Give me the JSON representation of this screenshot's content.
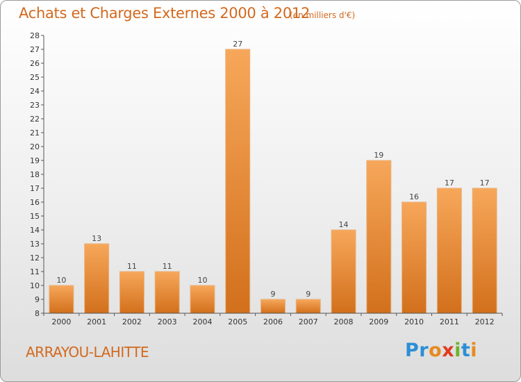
{
  "header": {
    "title": "Achats et Charges Externes 2000 à 2012",
    "subtitle": "(en milliers d'€)"
  },
  "footer": {
    "place": "ARRAYOU-LAHITTE",
    "logo_letters": [
      {
        "ch": "P",
        "color": "#2b8fd6"
      },
      {
        "ch": "r",
        "color": "#2b8fd6"
      },
      {
        "ch": "o",
        "color": "#e8891e"
      },
      {
        "ch": "x",
        "color": "#e03a1e"
      },
      {
        "ch": "i",
        "color": "#6bb52a"
      },
      {
        "ch": "t",
        "color": "#2b8fd6"
      },
      {
        "ch": "i",
        "color": "#e8891e"
      }
    ]
  },
  "chart_data": {
    "type": "bar",
    "categories": [
      "2000",
      "2001",
      "2002",
      "2003",
      "2004",
      "2005",
      "2006",
      "2007",
      "2008",
      "2009",
      "2010",
      "2011",
      "2012"
    ],
    "values": [
      10,
      13,
      11,
      11,
      10,
      27,
      9,
      9,
      14,
      19,
      16,
      17,
      17
    ],
    "ylim": [
      8,
      28
    ],
    "yticks": [
      8,
      9,
      10,
      11,
      12,
      13,
      14,
      15,
      16,
      17,
      18,
      19,
      20,
      21,
      22,
      23,
      24,
      25,
      26,
      27,
      28
    ],
    "grid": false,
    "bar_color_top": "#f7a75a",
    "bar_color_bottom": "#d2701c",
    "axis_color": "#555555"
  }
}
